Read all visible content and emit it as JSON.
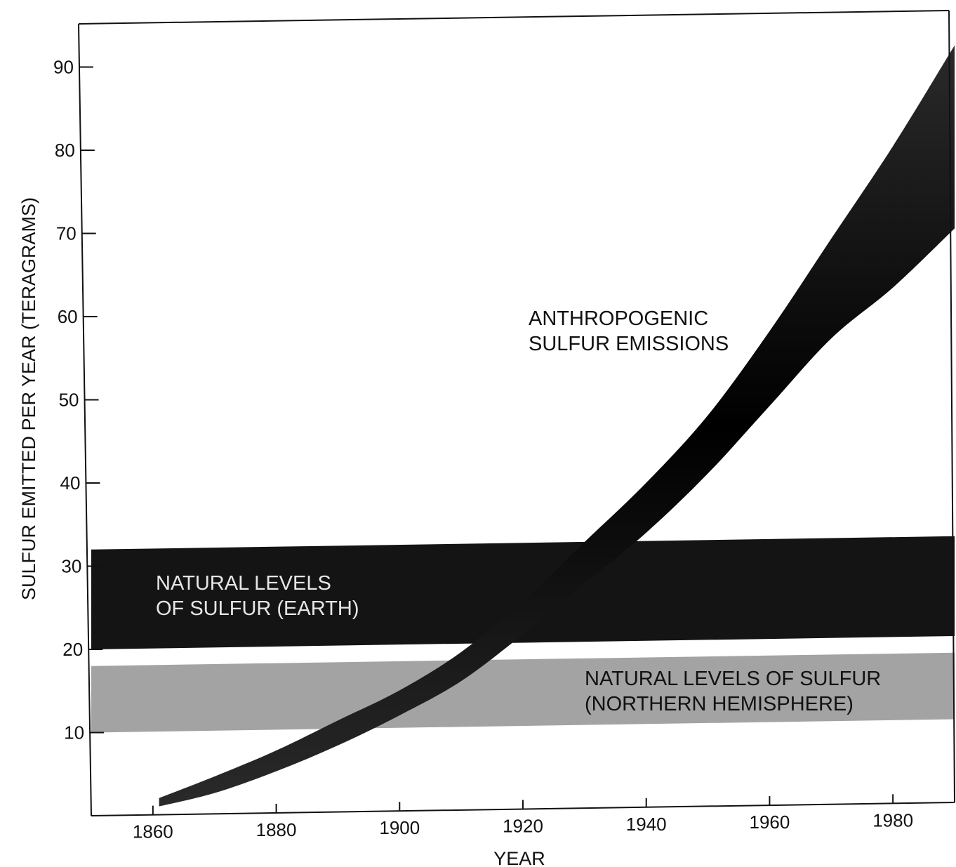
{
  "chart_data": {
    "type": "area",
    "xlabel": "YEAR",
    "ylabel": "SULFUR EMITTED PER YEAR (TERAGRAMS)",
    "xlim": [
      1850,
      1990
    ],
    "ylim": [
      0,
      95
    ],
    "x_ticks": [
      1860,
      1880,
      1900,
      1920,
      1940,
      1960,
      1980
    ],
    "y_ticks": [
      10,
      20,
      30,
      40,
      50,
      60,
      70,
      80,
      90
    ],
    "grid": false,
    "legend": "none",
    "bands": [
      {
        "name": "NATURAL LEVELS OF SULFUR (EARTH)",
        "label_lines": [
          "NATURAL LEVELS",
          "OF SULFUR (EARTH)"
        ],
        "y_low": 20,
        "y_high": 32,
        "color": "#141414",
        "label_color": "#e6e6e6"
      },
      {
        "name": "NATURAL LEVELS OF SULFUR (NORTHERN HEMISPHERE)",
        "label_lines": [
          "NATURAL LEVELS OF SULFUR",
          "(NORTHERN HEMISPHERE)"
        ],
        "y_low": 10,
        "y_high": 18,
        "color": "#a3a3a3",
        "label_color": "#111111"
      }
    ],
    "series": [
      {
        "name": "ANTHROPOGENIC SULFUR EMISSIONS",
        "label_lines": [
          "ANTHROPOGENIC",
          "SULFUR EMISSIONS"
        ],
        "color": "#050505",
        "x": [
          1861,
          1870,
          1880,
          1890,
          1900,
          1910,
          1920,
          1930,
          1940,
          1950,
          1960,
          1970,
          1980,
          1990
        ],
        "upper": [
          2,
          4.5,
          7.5,
          11,
          14.5,
          19,
          25,
          32,
          39,
          47,
          57,
          68,
          79,
          91
        ],
        "lower": [
          1,
          2.5,
          5,
          8,
          11.5,
          15.5,
          21,
          27,
          33,
          40,
          48,
          56,
          62,
          69
        ]
      }
    ]
  }
}
